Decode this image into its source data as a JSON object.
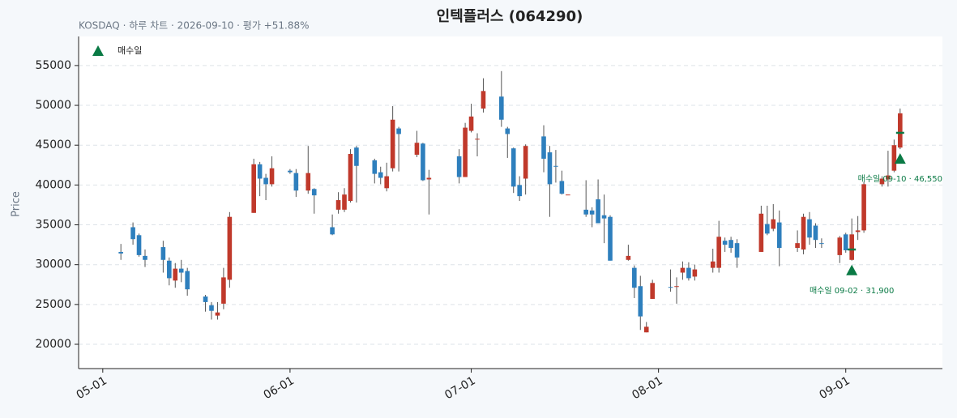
{
  "chart_data": {
    "type": "candlestick",
    "title": "인텍플러스 (064290)",
    "subtitle": "KOSDAQ · 하루 차트 · 2026-09-10 · 평가 +51.88%",
    "y_label": "Price",
    "up_color": "#c0392b",
    "down_color": "#2e7fbd",
    "grid": true,
    "xlim": [
      "2026-04-27",
      "2026-09-17"
    ],
    "xticks": [
      {
        "value": "2026-05-01",
        "label": "05-01"
      },
      {
        "value": "2026-06-01",
        "label": "06-01"
      },
      {
        "value": "2026-07-01",
        "label": "07-01"
      },
      {
        "value": "2026-08-01",
        "label": "08-01"
      },
      {
        "value": "2026-09-01",
        "label": "09-01"
      }
    ],
    "ylim": [
      16950,
      58650
    ],
    "yticks": [
      20000,
      25000,
      30000,
      35000,
      40000,
      45000,
      50000,
      55000
    ],
    "x": [
      "2026-05-04",
      "2026-05-06",
      "2026-05-07",
      "2026-05-08",
      "2026-05-11",
      "2026-05-12",
      "2026-05-13",
      "2026-05-14",
      "2026-05-15",
      "2026-05-18",
      "2026-05-19",
      "2026-05-20",
      "2026-05-21",
      "2026-05-22",
      "2026-05-26",
      "2026-05-27",
      "2026-05-28",
      "2026-05-29",
      "2026-06-01",
      "2026-06-02",
      "2026-06-04",
      "2026-06-05",
      "2026-06-08",
      "2026-06-09",
      "2026-06-10",
      "2026-06-11",
      "2026-06-12",
      "2026-06-15",
      "2026-06-16",
      "2026-06-17",
      "2026-06-18",
      "2026-06-19",
      "2026-06-22",
      "2026-06-23",
      "2026-06-24",
      "2026-06-29",
      "2026-06-30",
      "2026-07-01",
      "2026-07-02",
      "2026-07-03",
      "2026-07-06",
      "2026-07-07",
      "2026-07-08",
      "2026-07-09",
      "2026-07-10",
      "2026-07-13",
      "2026-07-14",
      "2026-07-15",
      "2026-07-16",
      "2026-07-17",
      "2026-07-20",
      "2026-07-21",
      "2026-07-22",
      "2026-07-23",
      "2026-07-24",
      "2026-07-27",
      "2026-07-28",
      "2026-07-29",
      "2026-07-30",
      "2026-07-31",
      "2026-08-03",
      "2026-08-04",
      "2026-08-05",
      "2026-08-06",
      "2026-08-07",
      "2026-08-10",
      "2026-08-11",
      "2026-08-12",
      "2026-08-13",
      "2026-08-14",
      "2026-08-18",
      "2026-08-19",
      "2026-08-20",
      "2026-08-21",
      "2026-08-24",
      "2026-08-25",
      "2026-08-26",
      "2026-08-27",
      "2026-08-28",
      "2026-08-31",
      "2026-09-01",
      "2026-09-02",
      "2026-09-03",
      "2026-09-04",
      "2026-09-07",
      "2026-09-08",
      "2026-09-09",
      "2026-09-10"
    ],
    "open": [
      31600,
      34700,
      33700,
      31100,
      32200,
      30500,
      28000,
      29500,
      29200,
      26000,
      24900,
      23600,
      25100,
      28100,
      36500,
      42600,
      40900,
      40100,
      41800,
      41500,
      39300,
      39500,
      34700,
      36900,
      36900,
      38000,
      44700,
      43100,
      41600,
      39600,
      42100,
      47100,
      43800,
      45200,
      40700,
      43600,
      41000,
      46800,
      45700,
      49600,
      51100,
      47100,
      44600,
      40000,
      40800,
      46100,
      44100,
      42400,
      40500,
      38800,
      36900,
      36800,
      38200,
      36200,
      36000,
      30600,
      29600,
      27300,
      21500,
      25700,
      27200,
      27200,
      29000,
      29600,
      28500,
      29600,
      29600,
      33000,
      33100,
      32700,
      31600,
      35100,
      34500,
      35300,
      32100,
      31900,
      35700,
      34900,
      32700,
      31200,
      33800,
      30600,
      34100,
      34300,
      40100,
      40700,
      41800,
      44700
    ],
    "high": [
      32600,
      35300,
      33900,
      31900,
      33000,
      30900,
      30200,
      30600,
      29600,
      26200,
      25300,
      25300,
      29600,
      36600,
      43300,
      42900,
      41400,
      43600,
      42000,
      42000,
      44900,
      39600,
      36300,
      39100,
      39600,
      44500,
      44900,
      43300,
      42300,
      42800,
      49900,
      47300,
      46800,
      45300,
      41900,
      44500,
      47800,
      50200,
      46500,
      53400,
      54300,
      47300,
      44700,
      41100,
      45100,
      47500,
      44900,
      44400,
      41800,
      38800,
      40600,
      37200,
      40700,
      38800,
      36200,
      32500,
      29900,
      28600,
      22800,
      28100,
      29400,
      28400,
      30400,
      30300,
      30000,
      32000,
      35500,
      33400,
      33500,
      33200,
      37400,
      37400,
      37600,
      36800,
      34300,
      36400,
      36600,
      35200,
      33300,
      33600,
      34000,
      35800,
      36100,
      40400,
      41100,
      44300,
      45700,
      49600
    ],
    "low": [
      30600,
      32500,
      31000,
      29700,
      29000,
      27400,
      27100,
      27800,
      26100,
      24100,
      23100,
      23100,
      24400,
      27100,
      36500,
      38600,
      38100,
      39800,
      41400,
      38500,
      38900,
      36400,
      33700,
      36400,
      36600,
      37800,
      37800,
      40200,
      40100,
      39200,
      41700,
      41700,
      43500,
      40500,
      36300,
      40200,
      41000,
      46600,
      43600,
      49100,
      47300,
      43400,
      39000,
      38000,
      38800,
      41600,
      36000,
      40300,
      38800,
      38800,
      36000,
      34700,
      35200,
      32700,
      30500,
      30500,
      25800,
      21800,
      21500,
      25700,
      26600,
      25100,
      28100,
      28000,
      28000,
      29000,
      29000,
      31600,
      31500,
      29600,
      31600,
      33700,
      34200,
      29800,
      31600,
      31300,
      32500,
      32100,
      32100,
      30200,
      31500,
      30500,
      33100,
      34000,
      39800,
      39800,
      41600,
      44500
    ],
    "close": [
      31400,
      33200,
      31200,
      30600,
      30600,
      28300,
      29500,
      29000,
      26900,
      25300,
      24200,
      24000,
      28400,
      36000,
      42600,
      40800,
      40100,
      42100,
      41600,
      39300,
      41500,
      38700,
      33800,
      38100,
      38800,
      43900,
      42400,
      41400,
      40900,
      41100,
      48200,
      46400,
      45300,
      40600,
      40900,
      41000,
      47200,
      48600,
      45800,
      51800,
      48200,
      46400,
      39800,
      38600,
      44900,
      43300,
      40100,
      42300,
      38900,
      38800,
      36300,
      36300,
      35200,
      35800,
      30500,
      31100,
      27100,
      23500,
      22200,
      27700,
      27100,
      27300,
      29600,
      28300,
      29400,
      30400,
      33500,
      32500,
      32100,
      30900,
      36400,
      33900,
      35700,
      32100,
      32700,
      36000,
      33400,
      33100,
      32600,
      33400,
      31800,
      33800,
      34300,
      40100,
      40800,
      41200,
      45000,
      49000
    ],
    "markers": {
      "name": "매수일",
      "color": "#0a7a45",
      "points": [
        {
          "x": "2026-09-02",
          "value": 31900,
          "label": "매수일 09-02 · 31,900"
        },
        {
          "x": "2026-09-10",
          "value": 46550,
          "label": "매수일 09-10 · 46,550"
        }
      ]
    }
  }
}
